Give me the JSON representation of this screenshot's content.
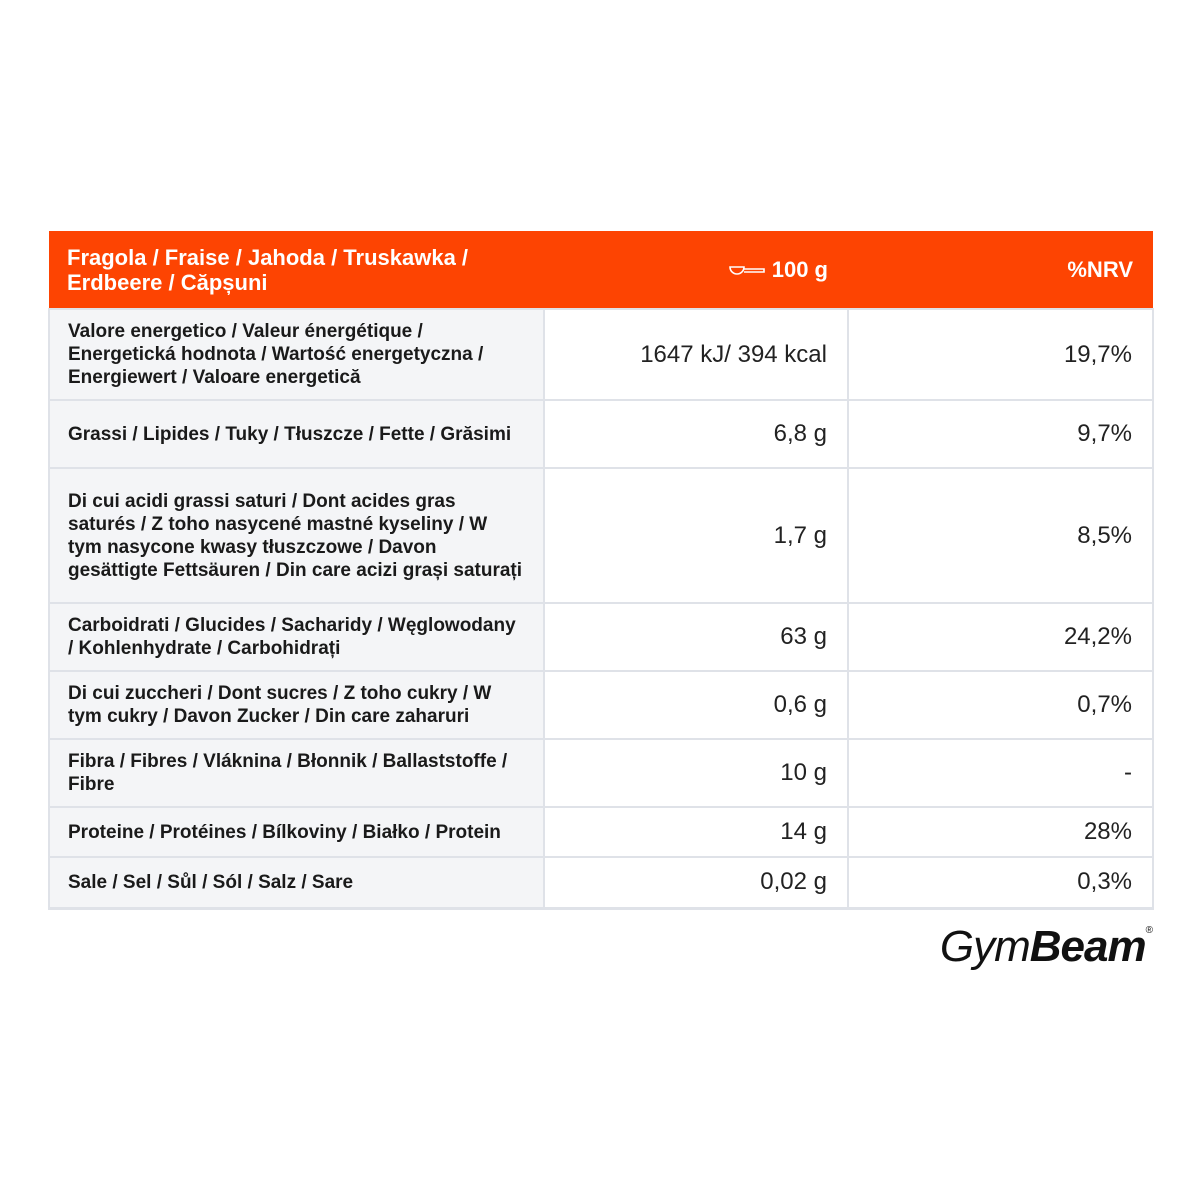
{
  "header": {
    "title": "Fragola / Fraise / Jahoda / Truskawka / Erdbeere / Căpșuni",
    "amount": "100 g",
    "nrv": "%NRV"
  },
  "table": {
    "rows": [
      [
        "Valore energetico / Valeur énergétique / Energetická hodnota / Wartość energetyczna / Energiewert / Valoare energetică",
        "1647 kJ/ 394 kcal",
        "19,7%"
      ],
      [
        "Grassi / Lipides / Tuky / Tłuszcze / Fette / Grăsimi",
        "6,8 g",
        "9,7%"
      ],
      [
        "Di cui acidi grassi saturi / Dont acides gras saturés / Z toho nasycené mastné kyseliny / W tym nasycone kwasy tłuszczowe / Davon gesättigte Fettsäuren / Din care acizi grași saturați",
        "1,7 g",
        "8,5%"
      ],
      [
        "Carboidrati / Glucides / Sacharidy / Węglowodany / Kohlenhydrate / Carbohidrați",
        "63 g",
        "24,2%"
      ],
      [
        "Di cui zuccheri / Dont sucres / Z toho cukry / W tym cukry / Davon Zucker / Din care zaharuri",
        "0,6 g",
        "0,7%"
      ],
      [
        "Fibra / Fibres / Vláknina / Błonnik / Ballaststoffe / Fibre",
        "10 g",
        "-"
      ],
      [
        "Proteine / Protéines / Bílkoviny / Białko / Protein",
        "14 g",
        "28%"
      ],
      [
        "Sale / Sel / Sůl / Sól / Salz / Sare",
        "0,02 g",
        "0,3%"
      ]
    ]
  },
  "logo": {
    "light": "Gym",
    "bold": "Beam",
    "mark": "®"
  }
}
